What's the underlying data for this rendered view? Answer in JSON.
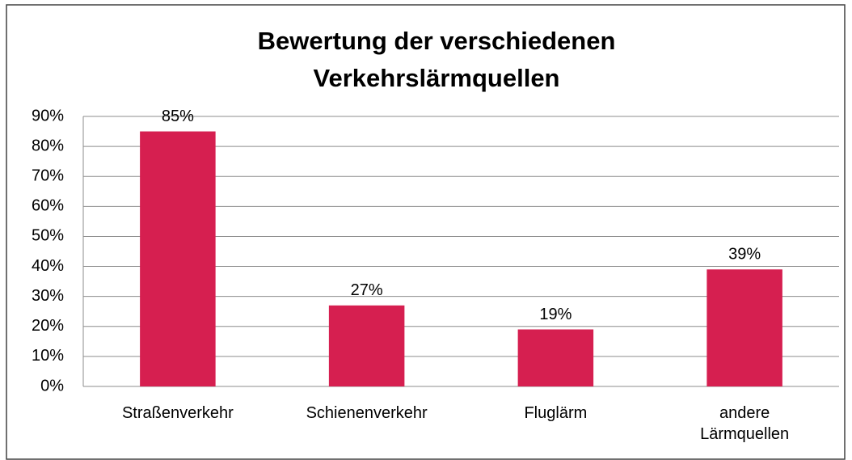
{
  "chart_data": {
    "type": "bar",
    "title": "Bewertung der verschiedenen Verkehrslärmquellen",
    "categories": [
      "Straßenverkehr",
      "Schienenverkehr",
      "Fluglärm",
      "andere Lärmquellen"
    ],
    "values": [
      85,
      27,
      19,
      39
    ],
    "value_labels": [
      "85%",
      "27%",
      "19%",
      "39%"
    ],
    "color": "#d61f50",
    "ylim": [
      0,
      90
    ],
    "yticks": [
      {
        "value": 0,
        "label": "0%"
      },
      {
        "value": 10,
        "label": "10%"
      },
      {
        "value": 20,
        "label": "20%"
      },
      {
        "value": 30,
        "label": "30%"
      },
      {
        "value": 40,
        "label": "40%"
      },
      {
        "value": 50,
        "label": "50%"
      },
      {
        "value": 60,
        "label": "60%"
      },
      {
        "value": 70,
        "label": "70%"
      },
      {
        "value": 80,
        "label": "80%"
      },
      {
        "value": 90,
        "label": "90%"
      }
    ],
    "grid": true
  }
}
